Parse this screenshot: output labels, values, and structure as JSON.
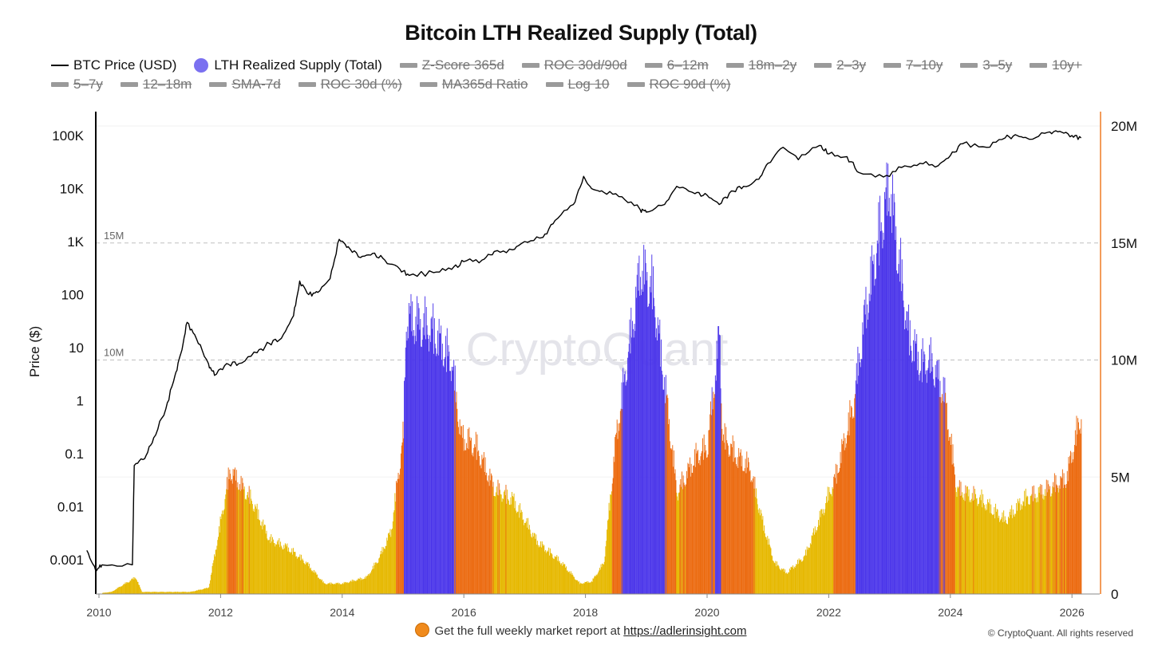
{
  "chart_data": {
    "title": "Bitcoin LTH Realized Supply (Total)",
    "type": "line",
    "legend": {
      "active": [
        {
          "key": "price",
          "label": "BTC Price (USD)",
          "style": "line"
        },
        {
          "key": "lth",
          "label": "LTH Realized Supply (Total)",
          "style": "dot"
        }
      ],
      "hidden_row1": [
        "Z-Score 365d",
        "ROC 30d/90d",
        "6–12m",
        "18m–2y",
        "2–3y",
        "7–10y",
        "3–5y",
        "10y+"
      ],
      "hidden_row2": [
        "5–7y",
        "12–18m",
        "SMA-7d",
        "ROC 30d (%)",
        "MA365d Ratio",
        "Log 10",
        "ROC 90d (%)"
      ]
    },
    "y_left": {
      "label": "Price ($)",
      "scale": "log",
      "ticks": [
        "100K",
        "10K",
        "1K",
        "100",
        "10",
        "1",
        "0.1",
        "0.01",
        "0.001"
      ]
    },
    "y_right": {
      "ticks": [
        "20M",
        "15M",
        "10M",
        "5M",
        "0"
      ],
      "range": [
        0,
        20000000
      ]
    },
    "reference_lines": [
      "15M",
      "10M"
    ],
    "x_ticks": [
      "2010",
      "2012",
      "2014",
      "2016",
      "2018",
      "2020",
      "2022",
      "2024",
      "2026"
    ],
    "colors": {
      "price": "#000000",
      "low": "#e6b800",
      "mid": "#ec6a0f",
      "high": "#4b36ea",
      "right_axis": "#f39c5a",
      "reference": "#bfbfbf"
    },
    "series": [
      {
        "name": "BTC Price (USD)",
        "points": [
          [
            2009.8,
            0.0015
          ],
          [
            2009.95,
            0.0006
          ],
          [
            2010.05,
            0.0008
          ],
          [
            2010.55,
            0.0008
          ],
          [
            2010.58,
            0.06
          ],
          [
            2010.75,
            0.08
          ],
          [
            2010.9,
            0.2
          ],
          [
            2011.1,
            0.7
          ],
          [
            2011.25,
            3
          ],
          [
            2011.35,
            8
          ],
          [
            2011.45,
            30
          ],
          [
            2011.6,
            15
          ],
          [
            2011.8,
            5
          ],
          [
            2011.9,
            3
          ],
          [
            2012.1,
            5
          ],
          [
            2012.3,
            5
          ],
          [
            2012.6,
            8
          ],
          [
            2012.8,
            12
          ],
          [
            2013.0,
            15
          ],
          [
            2013.2,
            40
          ],
          [
            2013.3,
            180
          ],
          [
            2013.45,
            100
          ],
          [
            2013.6,
            110
          ],
          [
            2013.8,
            200
          ],
          [
            2013.95,
            1100
          ],
          [
            2014.1,
            800
          ],
          [
            2014.3,
            500
          ],
          [
            2014.5,
            600
          ],
          [
            2014.7,
            450
          ],
          [
            2014.95,
            300
          ],
          [
            2015.1,
            230
          ],
          [
            2015.5,
            260
          ],
          [
            2015.8,
            300
          ],
          [
            2016.0,
            420
          ],
          [
            2016.3,
            450
          ],
          [
            2016.5,
            650
          ],
          [
            2016.8,
            700
          ],
          [
            2017.0,
            1000
          ],
          [
            2017.3,
            1200
          ],
          [
            2017.5,
            2500
          ],
          [
            2017.8,
            5000
          ],
          [
            2017.97,
            17000
          ],
          [
            2018.1,
            10000
          ],
          [
            2018.3,
            8500
          ],
          [
            2018.6,
            7000
          ],
          [
            2018.9,
            4000
          ],
          [
            2019.0,
            3600
          ],
          [
            2019.3,
            5000
          ],
          [
            2019.5,
            11000
          ],
          [
            2019.8,
            8000
          ],
          [
            2020.0,
            7500
          ],
          [
            2020.2,
            5000
          ],
          [
            2020.4,
            9000
          ],
          [
            2020.6,
            11000
          ],
          [
            2020.85,
            15000
          ],
          [
            2021.0,
            30000
          ],
          [
            2021.25,
            60000
          ],
          [
            2021.5,
            35000
          ],
          [
            2021.85,
            65000
          ],
          [
            2022.0,
            45000
          ],
          [
            2022.3,
            40000
          ],
          [
            2022.5,
            20000
          ],
          [
            2022.9,
            16500
          ],
          [
            2023.2,
            25000
          ],
          [
            2023.5,
            30000
          ],
          [
            2023.8,
            27000
          ],
          [
            2024.0,
            42000
          ],
          [
            2024.2,
            70000
          ],
          [
            2024.6,
            60000
          ],
          [
            2024.9,
            90000
          ],
          [
            2025.1,
            100000
          ],
          [
            2025.3,
            85000
          ],
          [
            2025.6,
            115000
          ],
          [
            2025.8,
            120000
          ],
          [
            2026.0,
            100000
          ],
          [
            2026.15,
            90000
          ]
        ]
      },
      {
        "name": "LTH Realized Supply (Total)",
        "points": [
          [
            2009.9,
            0
          ],
          [
            2010.2,
            0.1
          ],
          [
            2010.6,
            0.8
          ],
          [
            2010.7,
            0.1
          ],
          [
            2011.5,
            0.1
          ],
          [
            2011.8,
            0.3
          ],
          [
            2012.0,
            3.5
          ],
          [
            2012.15,
            5.9
          ],
          [
            2012.5,
            4.5
          ],
          [
            2012.8,
            2.6
          ],
          [
            2013.1,
            2.2
          ],
          [
            2013.4,
            1.5
          ],
          [
            2013.7,
            0.5
          ],
          [
            2014.0,
            0.5
          ],
          [
            2014.4,
            0.8
          ],
          [
            2014.6,
            1.7
          ],
          [
            2014.8,
            3.0
          ],
          [
            2015.0,
            7.6
          ],
          [
            2015.05,
            13.2
          ],
          [
            2015.2,
            13.0
          ],
          [
            2015.5,
            12.5
          ],
          [
            2015.7,
            11.5
          ],
          [
            2015.8,
            11.0
          ],
          [
            2015.95,
            7.5
          ],
          [
            2016.2,
            7.0
          ],
          [
            2016.5,
            5.0
          ],
          [
            2016.8,
            4.5
          ],
          [
            2017.2,
            2.5
          ],
          [
            2017.6,
            1.5
          ],
          [
            2017.9,
            0.5
          ],
          [
            2018.1,
            0.6
          ],
          [
            2018.3,
            1.5
          ],
          [
            2018.5,
            7.5
          ],
          [
            2018.9,
            15.5
          ],
          [
            2019.1,
            14.5
          ],
          [
            2019.3,
            10.0
          ],
          [
            2019.5,
            4.8
          ],
          [
            2019.8,
            6.5
          ],
          [
            2020.0,
            7.0
          ],
          [
            2020.2,
            12.5
          ],
          [
            2020.25,
            7.5
          ],
          [
            2020.5,
            6.5
          ],
          [
            2020.7,
            6.0
          ],
          [
            2020.9,
            3.5
          ],
          [
            2021.1,
            1.5
          ],
          [
            2021.3,
            1.0
          ],
          [
            2021.6,
            1.8
          ],
          [
            2021.9,
            4.0
          ],
          [
            2022.1,
            5.5
          ],
          [
            2022.4,
            9.0
          ],
          [
            2022.6,
            13.5
          ],
          [
            2022.85,
            17.5
          ],
          [
            2023.0,
            19.5
          ],
          [
            2023.1,
            17.0
          ],
          [
            2023.3,
            12.5
          ],
          [
            2023.5,
            11.0
          ],
          [
            2023.7,
            11.0
          ],
          [
            2023.9,
            9.5
          ],
          [
            2024.1,
            5.0
          ],
          [
            2024.5,
            4.5
          ],
          [
            2024.9,
            3.5
          ],
          [
            2025.2,
            4.5
          ],
          [
            2025.6,
            5.0
          ],
          [
            2025.9,
            5.5
          ],
          [
            2026.1,
            8.0
          ],
          [
            2026.15,
            8.5
          ]
        ]
      }
    ]
  },
  "footer": {
    "text": "Get the full weekly market report at",
    "link": "https://adlerinsight.com",
    "copyright": "© CryptoQuant. All rights reserved"
  },
  "watermark": "CryptoQuant"
}
